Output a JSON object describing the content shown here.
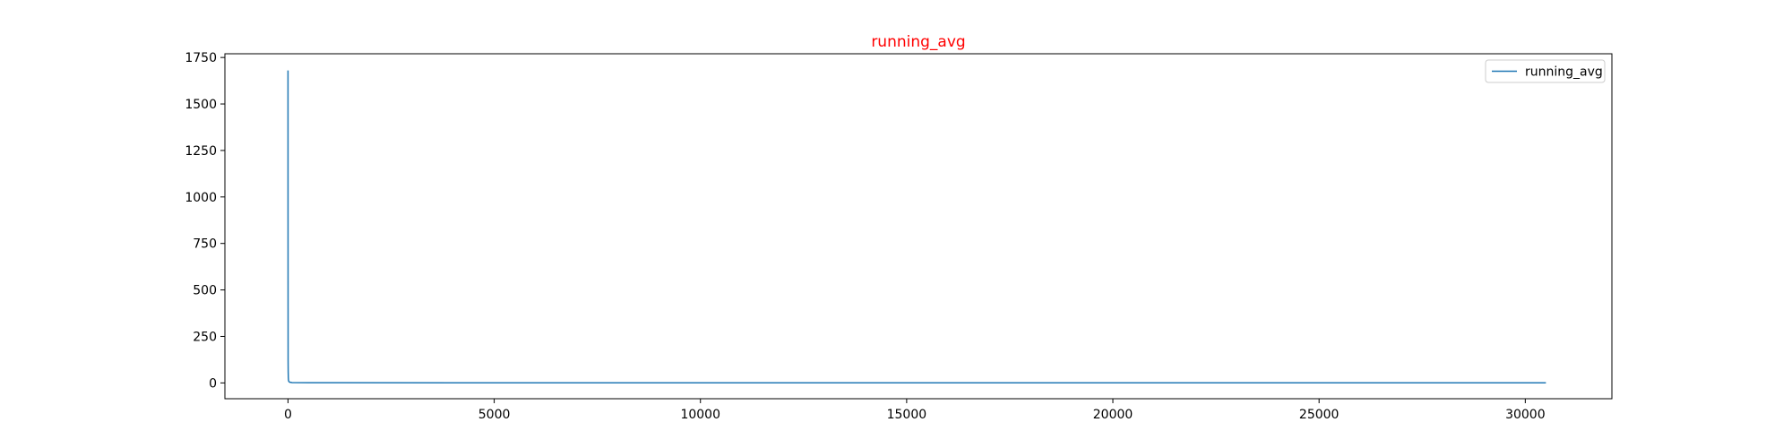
{
  "chart_data": {
    "type": "line",
    "title": "running_avg",
    "title_color": "#ff0000",
    "xlabel": "",
    "ylabel": "",
    "xlim": [
      -1530,
      32100
    ],
    "ylim": [
      -85,
      1770
    ],
    "x_ticks": [
      0,
      5000,
      10000,
      15000,
      20000,
      25000,
      30000
    ],
    "y_ticks": [
      0,
      250,
      500,
      750,
      1000,
      1250,
      1500,
      1750
    ],
    "grid": false,
    "legend_position": "top-right",
    "series": [
      {
        "name": "running_avg",
        "color": "#1f77b4",
        "x": [
          0,
          1,
          2,
          3,
          5,
          8,
          12,
          20,
          40,
          100,
          500,
          5000,
          30500
        ],
        "y": [
          1680,
          900,
          400,
          120,
          60,
          30,
          15,
          8,
          4,
          2,
          1,
          0.5,
          0.3
        ]
      }
    ]
  }
}
